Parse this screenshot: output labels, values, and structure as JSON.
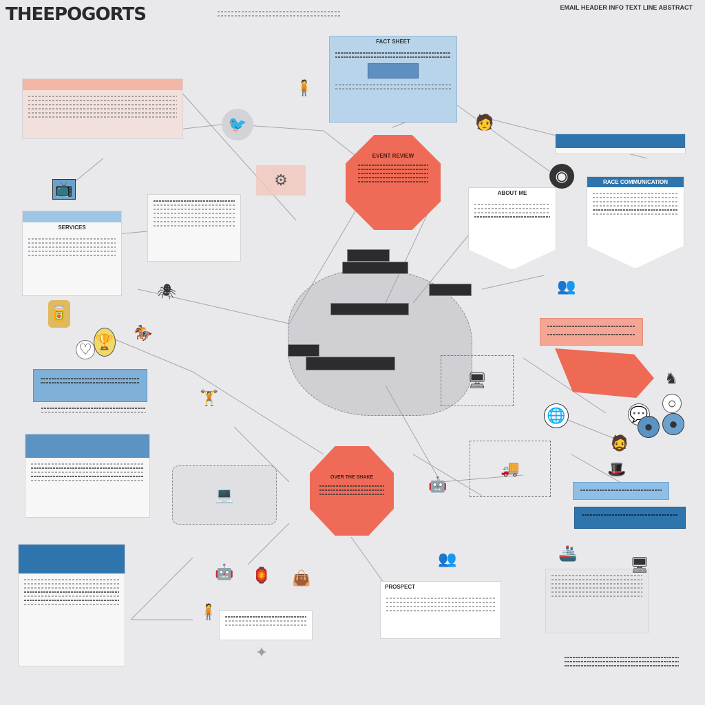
{
  "header": {
    "title": "THEEPOGORTS",
    "right_text": "EMAIL HEADER INFO TEXT LINE ABSTRACT"
  },
  "panels": {
    "top_center": {
      "heading": "FACT SHEET"
    },
    "orange_top": {
      "heading": "EVENT REVIEW"
    },
    "card_left_mid": {
      "heading": "SERVICES"
    },
    "card_right_a": {
      "heading": "ABOUT ME"
    },
    "card_right_b": {
      "heading": "RACE COMMUNICATION"
    },
    "orange_bottom": {
      "heading": "OVER THE SHAKE"
    },
    "card_bottom": {
      "heading": "PROSPECT"
    }
  },
  "colors": {
    "background": "#e9e9ec",
    "accent_orange": "#ef6b57",
    "accent_blue": "#2f75ad",
    "light_blue": "#9fc5e4",
    "salmon": "#f3b7a8"
  }
}
